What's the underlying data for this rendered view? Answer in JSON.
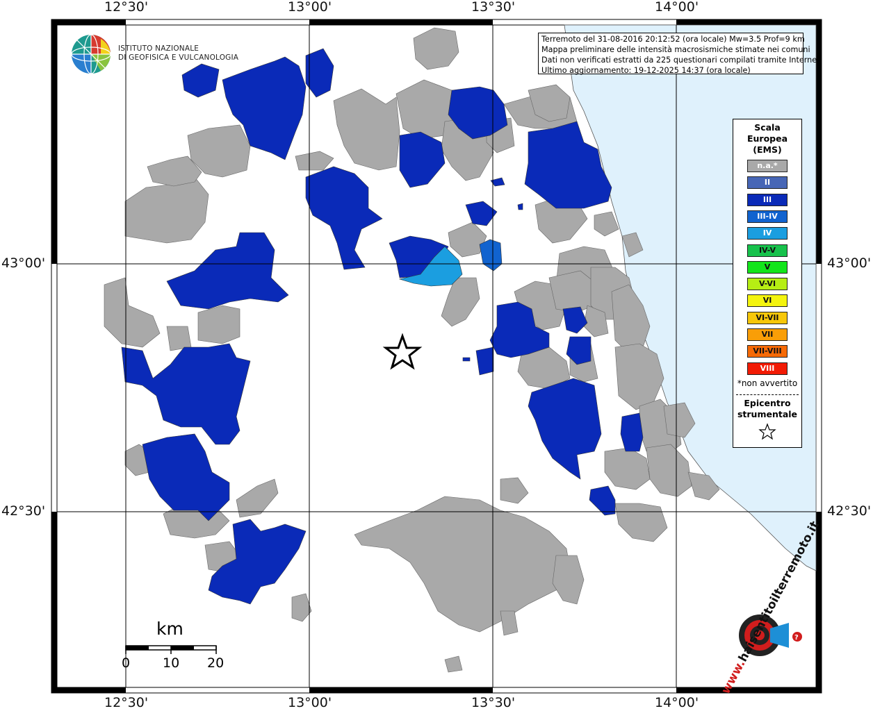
{
  "axis": {
    "top": [
      "12°30'",
      "13°00'",
      "13°30'",
      "14°00'"
    ],
    "bottom": [
      "12°30'",
      "13°00'",
      "13°30'",
      "14°00'"
    ],
    "left": [
      "43°00'",
      "42°30'"
    ],
    "right": [
      "43°00'",
      "42°30'"
    ]
  },
  "logo": {
    "line1": "ISTITUTO NAZIONALE",
    "line2": "DI GEOFISICA E VULCANOLOGIA"
  },
  "info": {
    "line1": "Terremoto del 31-08-2016 20:12:52 (ora locale) Mw=3.5 Prof=9 km",
    "line2": "Mappa preliminare delle intensità macrosismiche stimate nei comuni",
    "line3": "Dati non verificati estratti da 225 questionari compilati tramite Internet.",
    "line4": "Ultimo aggiornamento: 19-12-2025 14:37 (ora locale)"
  },
  "legend": {
    "title1": "Scala",
    "title2": "Europea",
    "title3": "(EMS)",
    "items": [
      {
        "label": "n.a.*",
        "color": "#a9a9a9",
        "text_color": "#ffffff"
      },
      {
        "label": "II",
        "color": "#4766b6",
        "text_color": "#ffffff"
      },
      {
        "label": "III",
        "color": "#0a2ab8",
        "text_color": "#ffffff"
      },
      {
        "label": "III-IV",
        "color": "#1163cf",
        "text_color": "#ffffff"
      },
      {
        "label": "IV",
        "color": "#1b9ee0",
        "text_color": "#ffffff"
      },
      {
        "label": "IV-V",
        "color": "#17c24c",
        "text_color": "#111111"
      },
      {
        "label": "V",
        "color": "#13e51b",
        "text_color": "#111111"
      },
      {
        "label": "V-VI",
        "color": "#b6ee14",
        "text_color": "#111111"
      },
      {
        "label": "VI",
        "color": "#f4f40e",
        "text_color": "#111111"
      },
      {
        "label": "VI-VII",
        "color": "#f7c70a",
        "text_color": "#111111"
      },
      {
        "label": "VII",
        "color": "#f99e07",
        "text_color": "#111111"
      },
      {
        "label": "VII-VIII",
        "color": "#f76a06",
        "text_color": "#111111"
      },
      {
        "label": "VIII",
        "color": "#f21b05",
        "text_color": "#ffffff"
      }
    ],
    "note": "*non avvertito",
    "epi1": "Epicentro",
    "epi2": "strumentale"
  },
  "scale": {
    "title": "km",
    "ticks": [
      "0",
      "10",
      "20"
    ]
  },
  "colors": {
    "sea": "#dff1fc",
    "na": "#a9a9a9",
    "iii": "#0a2ab8",
    "iii_iv": "#1163cf",
    "iv": "#1b9ee0"
  },
  "hsit": {
    "text": "haisentitoilterremoto.it",
    "url_text": "www."
  }
}
